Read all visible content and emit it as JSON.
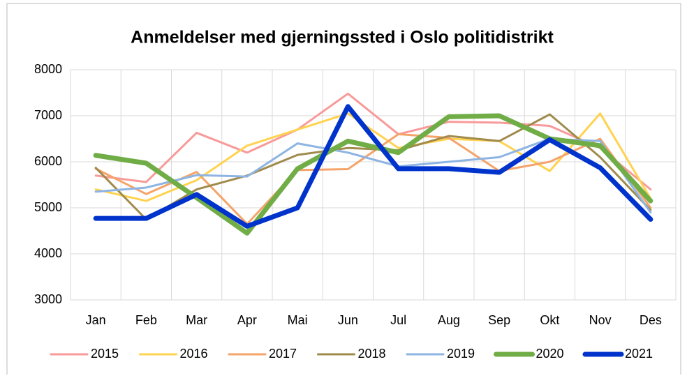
{
  "chart_data": {
    "type": "line",
    "title": "Anmeldelser med gjerningssted i Oslo politidistrikt",
    "categories": [
      "Jan",
      "Feb",
      "Mar",
      "Apr",
      "Mai",
      "Jun",
      "Jul",
      "Aug",
      "Sep",
      "Okt",
      "Nov",
      "Des"
    ],
    "series": [
      {
        "name": "2015",
        "color": "#f89a9a",
        "width": 3,
        "values": [
          5700,
          5560,
          6630,
          6200,
          6700,
          7480,
          6600,
          6870,
          6850,
          6780,
          6300,
          5400
        ]
      },
      {
        "name": "2016",
        "color": "#ffd34f",
        "width": 3,
        "values": [
          5400,
          5150,
          5600,
          6350,
          6700,
          7050,
          6300,
          6500,
          6450,
          5800,
          7050,
          5200
        ]
      },
      {
        "name": "2017",
        "color": "#f4a46a",
        "width": 3,
        "values": [
          5850,
          5300,
          5780,
          4650,
          5820,
          5840,
          6600,
          6520,
          5800,
          6000,
          6500,
          5000
        ]
      },
      {
        "name": "2018",
        "color": "#a08b4c",
        "width": 3,
        "values": [
          5870,
          4750,
          5400,
          5700,
          6150,
          6300,
          6250,
          6560,
          6450,
          7030,
          6100,
          4950
        ]
      },
      {
        "name": "2019",
        "color": "#8db4e2",
        "width": 3,
        "values": [
          5350,
          5440,
          5710,
          5680,
          6400,
          6200,
          5900,
          6000,
          6100,
          6500,
          6450,
          4900
        ]
      },
      {
        "name": "2020",
        "color": "#70ad47",
        "width": 7,
        "values": [
          6140,
          5970,
          5220,
          4450,
          5850,
          6450,
          6200,
          6980,
          7000,
          6500,
          6350,
          5150
        ]
      },
      {
        "name": "2021",
        "color": "#0033cc",
        "width": 7,
        "values": [
          4770,
          4770,
          5290,
          4600,
          5000,
          7200,
          5850,
          5850,
          5770,
          6480,
          5870,
          4750
        ]
      }
    ],
    "ylim": [
      3000,
      8000
    ],
    "yticks": [
      3000,
      4000,
      5000,
      6000,
      7000,
      8000
    ],
    "grid": true,
    "legend": "bottom"
  }
}
